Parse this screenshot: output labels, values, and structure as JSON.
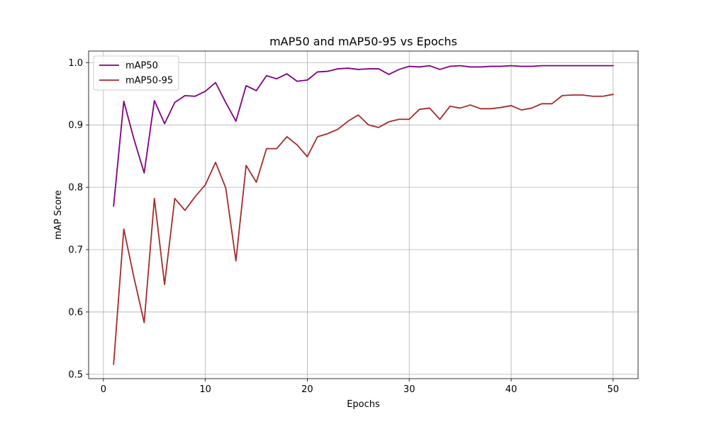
{
  "chart_data": {
    "type": "line",
    "title": "mAP50 and mAP50-95 vs Epochs",
    "xlabel": "Epochs",
    "ylabel": "mAP Score",
    "xlim": [
      -1.45,
      52.45
    ],
    "ylim": [
      0.493,
      1.0185
    ],
    "xticks": [
      0,
      10,
      20,
      30,
      40,
      50
    ],
    "yticks": [
      0.5,
      0.6,
      0.7,
      0.8,
      0.9,
      1.0
    ],
    "grid": true,
    "legend_position": "top-left",
    "x": [
      1,
      2,
      3,
      4,
      5,
      6,
      7,
      8,
      9,
      10,
      11,
      12,
      13,
      14,
      15,
      16,
      17,
      18,
      19,
      20,
      21,
      22,
      23,
      24,
      25,
      26,
      27,
      28,
      29,
      30,
      31,
      32,
      33,
      34,
      35,
      36,
      37,
      38,
      39,
      40,
      41,
      42,
      43,
      44,
      45,
      46,
      47,
      48,
      49,
      50
    ],
    "series": [
      {
        "name": "mAP50",
        "color": "#800080",
        "values": [
          0.77,
          0.938,
          0.877,
          0.823,
          0.939,
          0.902,
          0.936,
          0.947,
          0.946,
          0.954,
          0.968,
          0.936,
          0.906,
          0.963,
          0.955,
          0.979,
          0.974,
          0.982,
          0.97,
          0.972,
          0.985,
          0.986,
          0.99,
          0.991,
          0.989,
          0.99,
          0.99,
          0.981,
          0.989,
          0.994,
          0.993,
          0.995,
          0.989,
          0.994,
          0.995,
          0.993,
          0.993,
          0.994,
          0.994,
          0.995,
          0.994,
          0.994,
          0.995,
          0.995,
          0.995,
          0.995,
          0.995,
          0.995,
          0.995,
          0.995
        ]
      },
      {
        "name": "mAP50-95",
        "color": "#a52a2a",
        "values": [
          0.516,
          0.733,
          0.655,
          0.583,
          0.782,
          0.644,
          0.782,
          0.763,
          0.785,
          0.804,
          0.84,
          0.799,
          0.682,
          0.835,
          0.808,
          0.862,
          0.862,
          0.881,
          0.868,
          0.849,
          0.881,
          0.886,
          0.893,
          0.906,
          0.916,
          0.9,
          0.896,
          0.905,
          0.909,
          0.909,
          0.925,
          0.927,
          0.909,
          0.93,
          0.927,
          0.932,
          0.926,
          0.926,
          0.928,
          0.931,
          0.924,
          0.927,
          0.934,
          0.934,
          0.947,
          0.948,
          0.948,
          0.946,
          0.946,
          0.949
        ]
      }
    ]
  }
}
